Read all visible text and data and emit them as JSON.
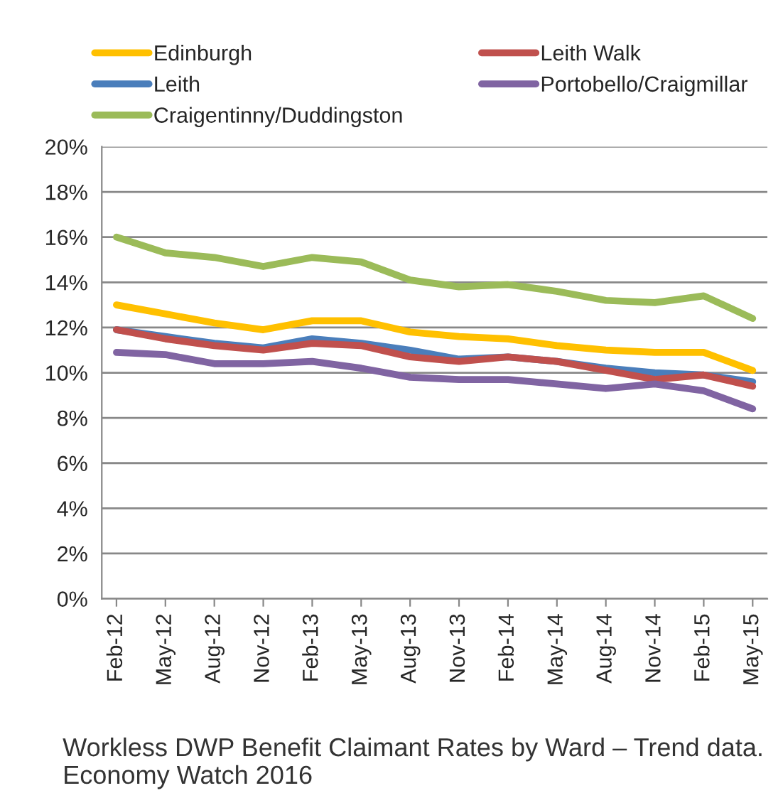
{
  "chart_data": {
    "type": "line",
    "categories": [
      "Feb-12",
      "May-12",
      "Aug-12",
      "Nov-12",
      "Feb-13",
      "May-13",
      "Aug-13",
      "Nov-13",
      "Feb-14",
      "May-14",
      "Aug-14",
      "Nov-14",
      "Feb-15",
      "May-15"
    ],
    "series": [
      {
        "name": "Edinburgh",
        "color": "#ffc000",
        "values": [
          13.0,
          12.6,
          12.2,
          11.9,
          12.3,
          12.3,
          11.8,
          11.6,
          11.5,
          11.2,
          11.0,
          10.9,
          10.9,
          10.1
        ]
      },
      {
        "name": "Leith",
        "color": "#4a7ebb",
        "values": [
          11.9,
          11.6,
          11.3,
          11.1,
          11.5,
          11.3,
          11.0,
          10.6,
          10.7,
          10.5,
          10.2,
          10.0,
          9.9,
          9.6
        ]
      },
      {
        "name": "Craigentinny/Duddingston",
        "color": "#9bbb59",
        "values": [
          16.0,
          15.3,
          15.1,
          14.7,
          15.1,
          14.9,
          14.1,
          13.8,
          13.9,
          13.6,
          13.2,
          13.1,
          13.4,
          12.4
        ]
      },
      {
        "name": "Leith Walk",
        "color": "#c0504d",
        "values": [
          11.9,
          11.5,
          11.2,
          11.0,
          11.3,
          11.2,
          10.7,
          10.5,
          10.7,
          10.5,
          10.1,
          9.7,
          9.9,
          9.4
        ]
      },
      {
        "name": "Portobello/Craigmillar",
        "color": "#8064a2",
        "values": [
          10.9,
          10.8,
          10.4,
          10.4,
          10.5,
          10.2,
          9.8,
          9.7,
          9.7,
          9.5,
          9.3,
          9.5,
          9.2,
          8.4
        ]
      }
    ],
    "ylim": [
      0,
      20
    ],
    "yticks": [
      {
        "value": 0,
        "label": "0%"
      },
      {
        "value": 2,
        "label": "2%"
      },
      {
        "value": 4,
        "label": "4%"
      },
      {
        "value": 6,
        "label": "6%"
      },
      {
        "value": 8,
        "label": "8%"
      },
      {
        "value": 10,
        "label": "10%"
      },
      {
        "value": 12,
        "label": "12%"
      },
      {
        "value": 14,
        "label": "14%"
      },
      {
        "value": 16,
        "label": "16%"
      },
      {
        "value": 18,
        "label": "18%"
      },
      {
        "value": 20,
        "label": "20%"
      }
    ],
    "grid": "y",
    "legend": "top",
    "marker": "none",
    "line_style": "solid",
    "annotations": [
      "Workless DWP Benefit Claimant Rates by Ward – Trend data. Economy Watch 2016"
    ]
  }
}
